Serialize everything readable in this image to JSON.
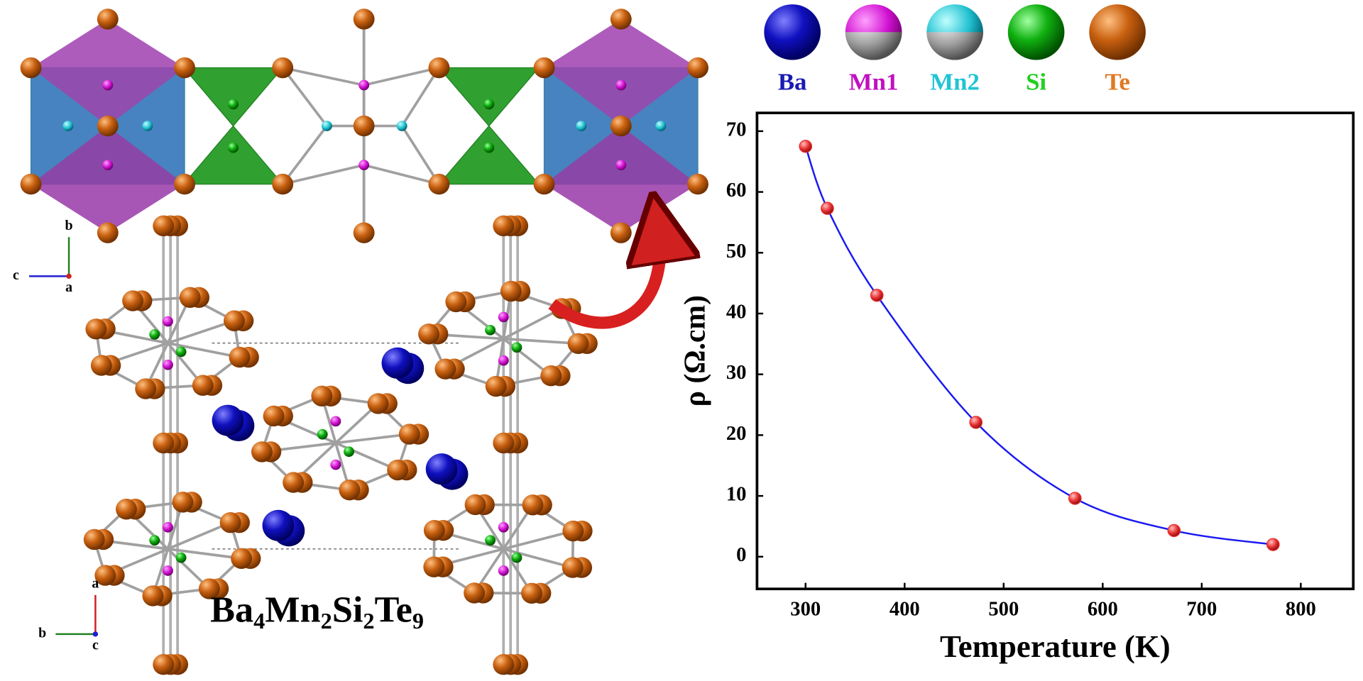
{
  "legend_atoms": [
    {
      "label": "Ba",
      "color": "#1a1ab4"
    },
    {
      "label": "Mn1",
      "color": "#c010c0"
    },
    {
      "label": "Mn2",
      "color": "#20c4d4"
    },
    {
      "label": "Si",
      "color": "#20d020"
    },
    {
      "label": "Te",
      "color": "#e07820"
    }
  ],
  "structure_axes": {
    "upper": [
      "b",
      "c",
      "a"
    ],
    "lower": [
      "a",
      "b",
      "c"
    ]
  },
  "formula": [
    "Ba",
    "4",
    "Mn",
    "2",
    "Si",
    "2",
    "Te",
    "9"
  ],
  "chart_data": {
    "type": "line",
    "x_label": "Temperature (K)",
    "y_label": "ρ (Ω.cm)",
    "x": [
      300,
      322,
      372,
      472,
      572,
      672,
      772
    ],
    "series": [
      {
        "values": [
          67.5,
          57.3,
          43,
          22.1,
          9.6,
          4.3,
          2.0
        ],
        "color": "#1a1af0",
        "marker_color": "#e83030"
      }
    ],
    "xlim": [
      251,
      853
    ],
    "ylim": [
      -5.3,
      73
    ],
    "xticks": [
      300,
      400,
      500,
      600,
      700,
      800
    ],
    "yticks": [
      0,
      10,
      20,
      30,
      40,
      50,
      60,
      70
    ]
  }
}
